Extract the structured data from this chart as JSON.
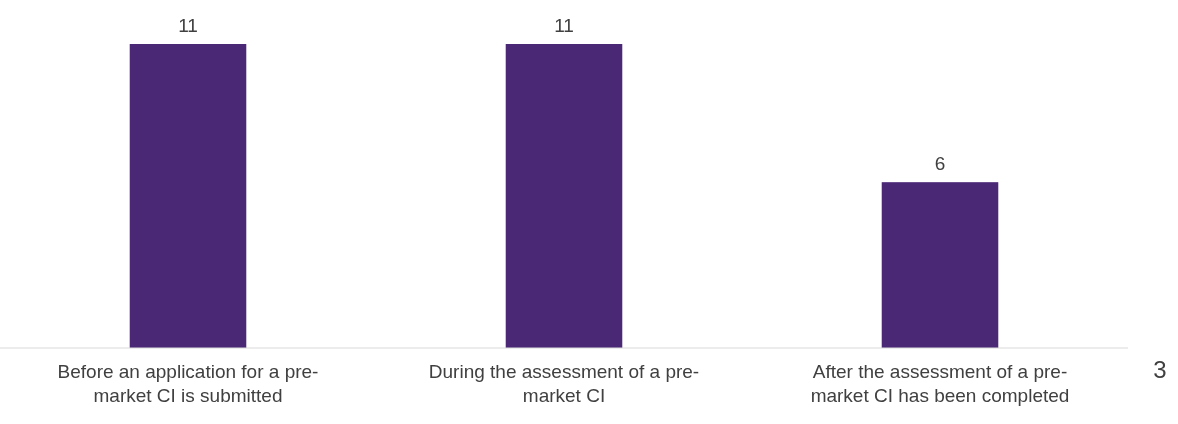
{
  "chart_data": {
    "type": "bar",
    "categories": [
      "Before an application for a pre-market CI is submitted",
      "During the assessment of a pre-market CI",
      "After the assessment of a pre-market CI has been completed"
    ],
    "values": [
      11,
      11,
      6
    ],
    "color": "#4b2876",
    "ylim": [
      0,
      11
    ],
    "data_labels": true,
    "annotations": [
      "3"
    ]
  }
}
